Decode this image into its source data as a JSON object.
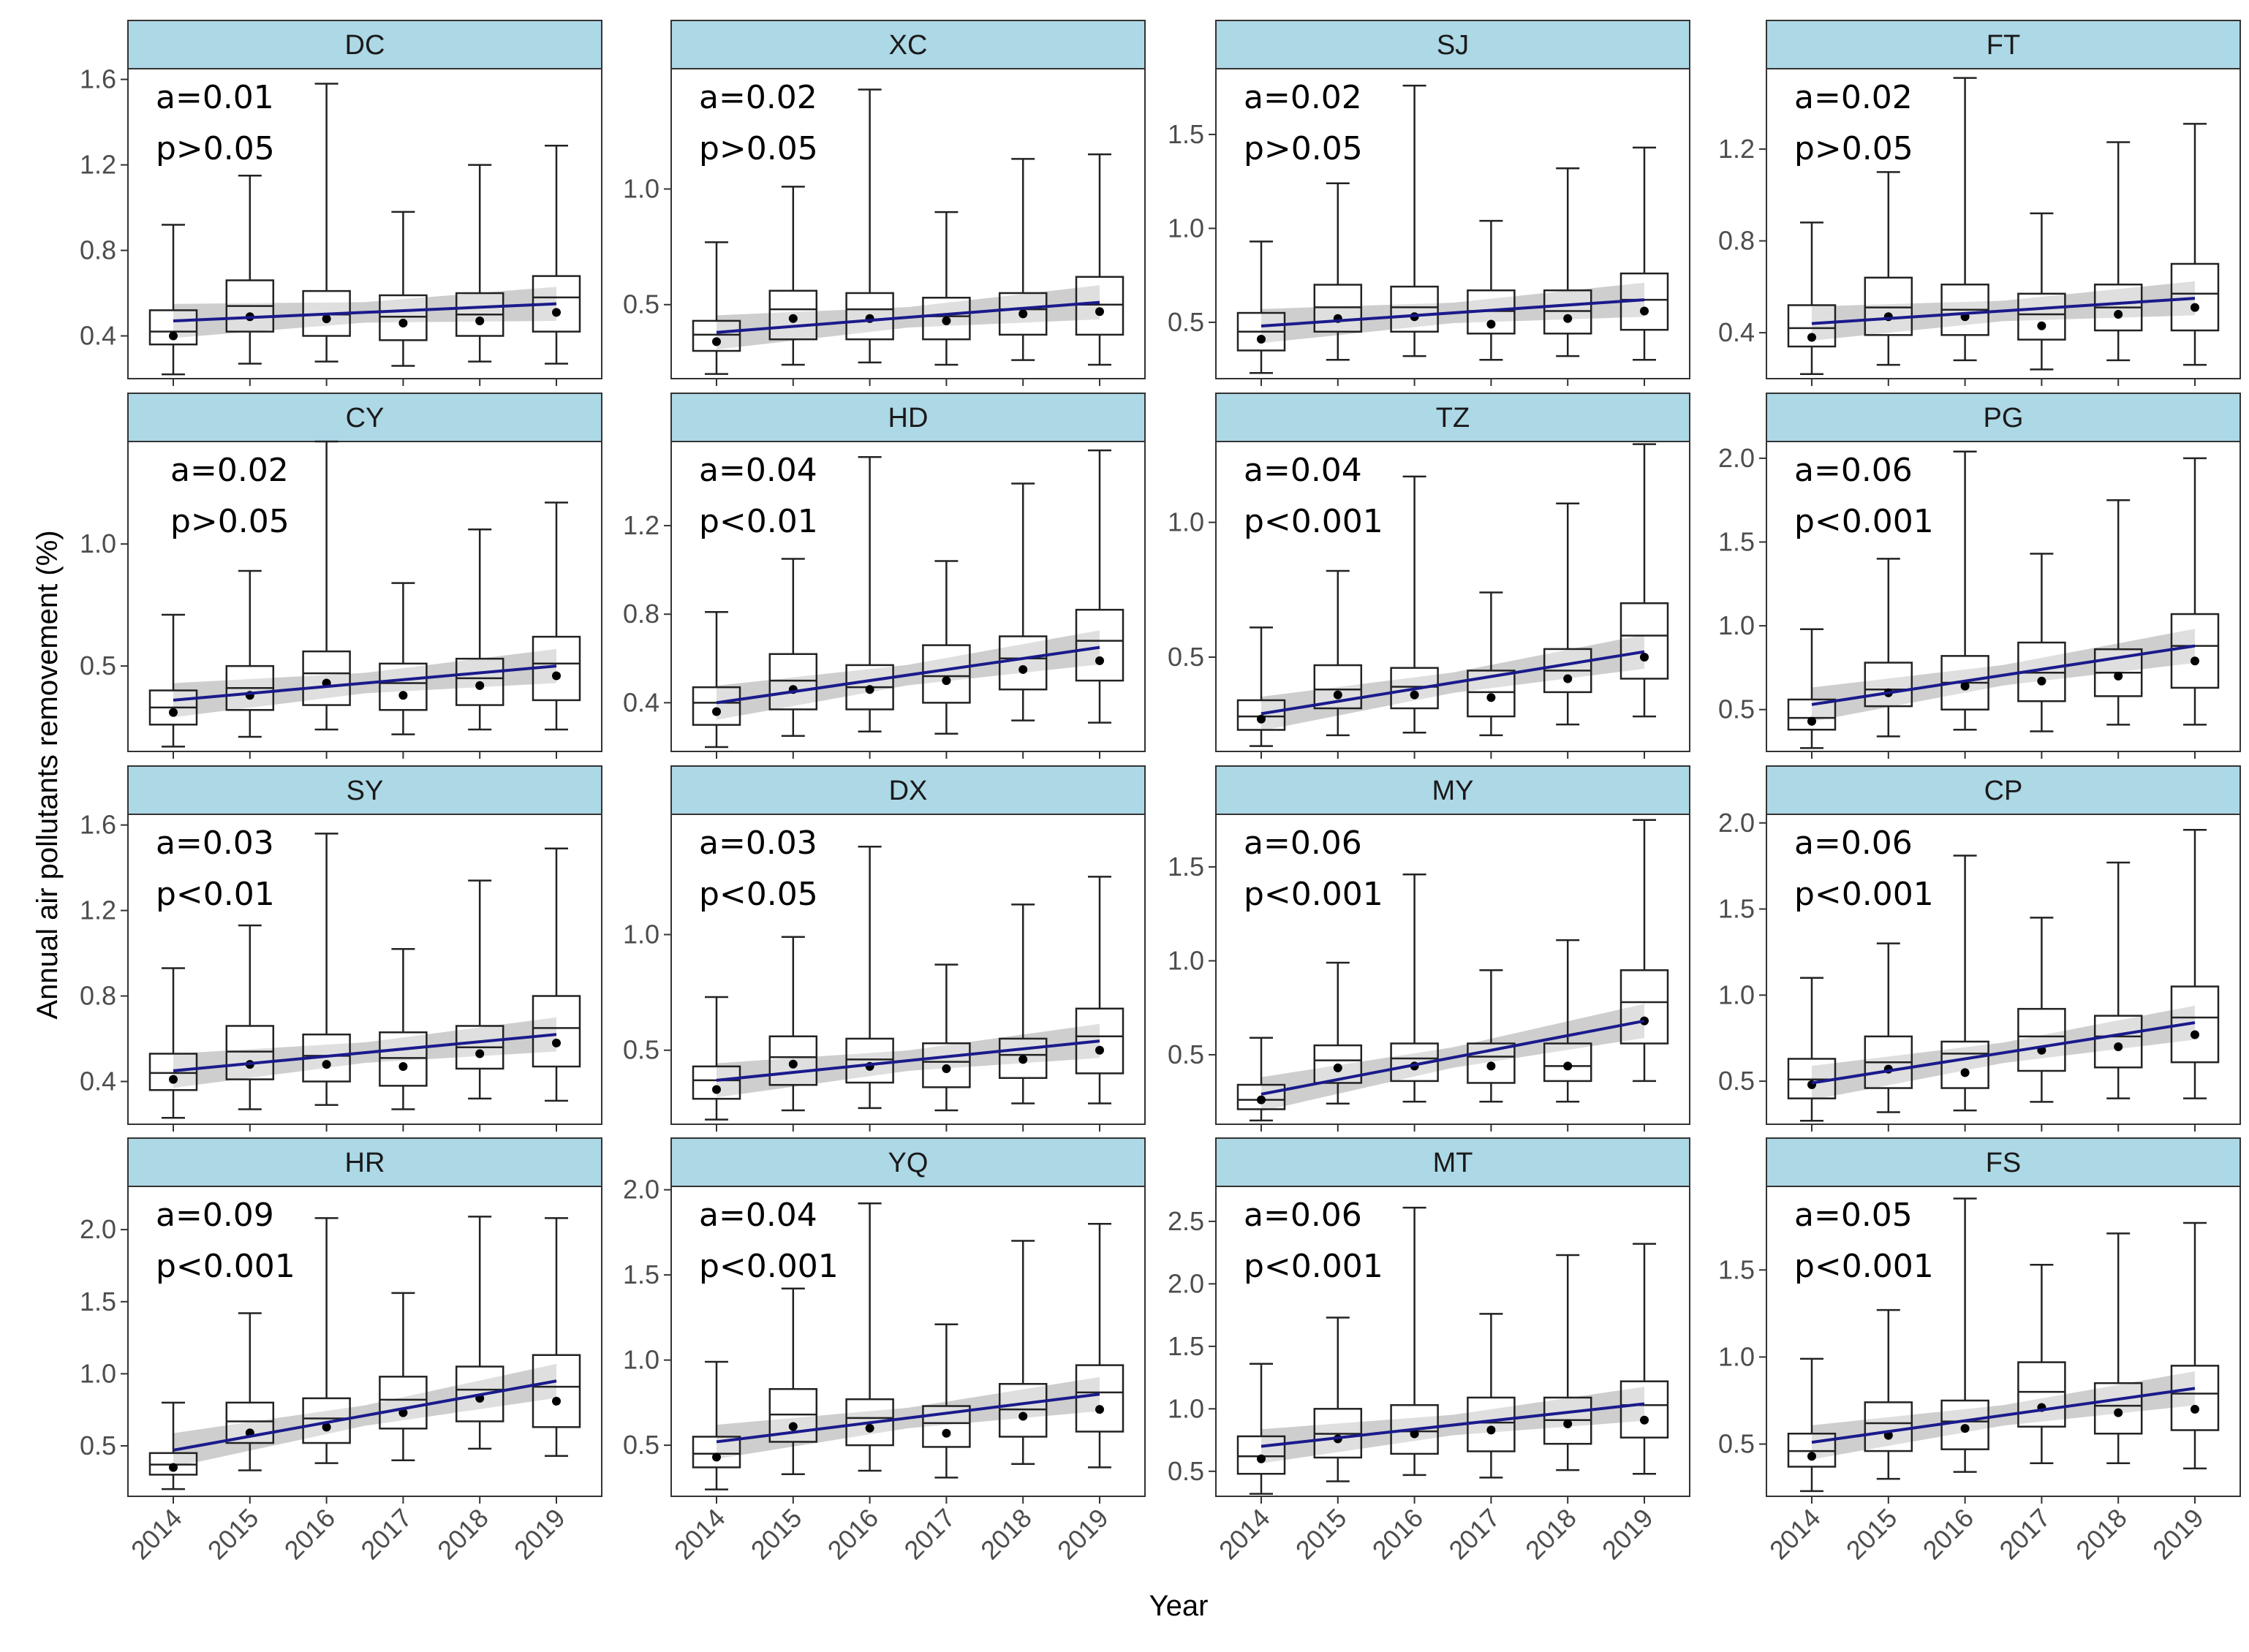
{
  "colors": {
    "strip_fill": "#add8e6",
    "panel_border": "#333333",
    "box_stroke": "#222222",
    "trend_line": "#1a1a8c",
    "ci_band": "#bdbdbd",
    "mean_point": "#000000"
  },
  "chart_data": {
    "type": "boxplot",
    "xlabel": "Year",
    "ylabel": "Annual air pollutants removement (%)",
    "years": [
      "2014",
      "2015",
      "2016",
      "2017",
      "2018",
      "2019"
    ],
    "panels": [
      {
        "name": "DC",
        "a": "a=0.01",
        "p": "p>0.05",
        "ylim": [
          0.2,
          1.65
        ],
        "ticks": [
          0.4,
          0.8,
          1.2,
          1.6
        ],
        "tick_labels": [
          "0.4",
          "0.8",
          "1.2",
          "1.6"
        ],
        "fit": [
          0.47,
          0.55
        ],
        "boxes": [
          [
            0.22,
            0.36,
            0.42,
            0.52,
            0.92,
            0.4
          ],
          [
            0.27,
            0.42,
            0.54,
            0.66,
            1.15,
            0.49
          ],
          [
            0.28,
            0.4,
            0.5,
            0.61,
            1.58,
            0.48
          ],
          [
            0.26,
            0.38,
            0.49,
            0.59,
            0.98,
            0.46
          ],
          [
            0.28,
            0.4,
            0.5,
            0.6,
            1.2,
            0.47
          ],
          [
            0.27,
            0.42,
            0.58,
            0.68,
            1.29,
            0.51
          ]
        ]
      },
      {
        "name": "XC",
        "a": "a=0.02",
        "p": "p>0.05",
        "ylim": [
          0.18,
          1.52
        ],
        "ticks": [
          0.5,
          1.0
        ],
        "tick_labels": [
          "0.5",
          "1.0"
        ],
        "fit": [
          0.38,
          0.51
        ],
        "boxes": [
          [
            0.2,
            0.3,
            0.37,
            0.43,
            0.77,
            0.34
          ],
          [
            0.24,
            0.35,
            0.48,
            0.56,
            1.01,
            0.44
          ],
          [
            0.25,
            0.35,
            0.48,
            0.55,
            1.43,
            0.44
          ],
          [
            0.24,
            0.35,
            0.45,
            0.53,
            0.9,
            0.43
          ],
          [
            0.26,
            0.37,
            0.48,
            0.55,
            1.13,
            0.46
          ],
          [
            0.24,
            0.37,
            0.5,
            0.62,
            1.15,
            0.47
          ]
        ]
      },
      {
        "name": "SJ",
        "a": "a=0.02",
        "p": "p>0.05",
        "ylim": [
          0.2,
          1.85
        ],
        "ticks": [
          0.5,
          1.0,
          1.5
        ],
        "tick_labels": [
          "0.5",
          "1.0",
          "1.5"
        ],
        "fit": [
          0.48,
          0.62
        ],
        "boxes": [
          [
            0.23,
            0.35,
            0.45,
            0.55,
            0.93,
            0.41
          ],
          [
            0.3,
            0.45,
            0.58,
            0.7,
            1.24,
            0.52
          ],
          [
            0.32,
            0.45,
            0.58,
            0.69,
            1.76,
            0.53
          ],
          [
            0.3,
            0.44,
            0.56,
            0.67,
            1.04,
            0.49
          ],
          [
            0.32,
            0.44,
            0.56,
            0.67,
            1.32,
            0.52
          ],
          [
            0.3,
            0.46,
            0.62,
            0.76,
            1.43,
            0.56
          ]
        ]
      },
      {
        "name": "FT",
        "a": "a=0.02",
        "p": "p>0.05",
        "ylim": [
          0.2,
          1.55
        ],
        "ticks": [
          0.4,
          0.8,
          1.2
        ],
        "tick_labels": [
          "0.4",
          "0.8",
          "1.2"
        ],
        "fit": [
          0.44,
          0.55
        ],
        "boxes": [
          [
            0.22,
            0.34,
            0.42,
            0.52,
            0.88,
            0.38
          ],
          [
            0.26,
            0.39,
            0.51,
            0.64,
            1.1,
            0.47
          ],
          [
            0.28,
            0.39,
            0.5,
            0.61,
            1.51,
            0.47
          ],
          [
            0.24,
            0.37,
            0.48,
            0.57,
            0.92,
            0.43
          ],
          [
            0.28,
            0.41,
            0.51,
            0.61,
            1.23,
            0.48
          ],
          [
            0.26,
            0.41,
            0.57,
            0.7,
            1.31,
            0.51
          ]
        ]
      },
      {
        "name": "CY",
        "a": "a=0.02",
        "p": "p>0.05",
        "ylim": [
          0.15,
          1.42
        ],
        "ticks": [
          0.5,
          1.0
        ],
        "tick_labels": [
          "0.5",
          "1.0"
        ],
        "fit": [
          0.36,
          0.5
        ],
        "boxes": [
          [
            0.17,
            0.26,
            0.33,
            0.4,
            0.71,
            0.31
          ],
          [
            0.21,
            0.32,
            0.41,
            0.5,
            0.89,
            0.38
          ],
          [
            0.24,
            0.34,
            0.47,
            0.56,
            1.42,
            0.43
          ],
          [
            0.22,
            0.32,
            0.43,
            0.51,
            0.84,
            0.38
          ],
          [
            0.24,
            0.34,
            0.45,
            0.53,
            1.06,
            0.42
          ],
          [
            0.24,
            0.36,
            0.51,
            0.62,
            1.17,
            0.46
          ]
        ]
      },
      {
        "name": "HD",
        "a": "a=0.04",
        "p": "p<0.01",
        "ylim": [
          0.18,
          1.58
        ],
        "ticks": [
          0.4,
          0.8,
          1.2
        ],
        "tick_labels": [
          "0.4",
          "0.8",
          "1.2"
        ],
        "fit": [
          0.4,
          0.65
        ],
        "boxes": [
          [
            0.2,
            0.3,
            0.4,
            0.47,
            0.81,
            0.36
          ],
          [
            0.25,
            0.37,
            0.5,
            0.62,
            1.05,
            0.46
          ],
          [
            0.27,
            0.37,
            0.47,
            0.57,
            1.51,
            0.46
          ],
          [
            0.26,
            0.4,
            0.52,
            0.66,
            1.04,
            0.5
          ],
          [
            0.32,
            0.46,
            0.6,
            0.7,
            1.39,
            0.55
          ],
          [
            0.31,
            0.5,
            0.68,
            0.82,
            1.54,
            0.59
          ]
        ]
      },
      {
        "name": "TZ",
        "a": "a=0.04",
        "p": "p<0.001",
        "ylim": [
          0.15,
          1.3
        ],
        "ticks": [
          0.5,
          1.0
        ],
        "tick_labels": [
          "0.5",
          "1.0"
        ],
        "fit": [
          0.29,
          0.52
        ],
        "boxes": [
          [
            0.17,
            0.23,
            0.28,
            0.34,
            0.61,
            0.27
          ],
          [
            0.21,
            0.31,
            0.38,
            0.47,
            0.82,
            0.36
          ],
          [
            0.22,
            0.31,
            0.39,
            0.46,
            1.17,
            0.36
          ],
          [
            0.21,
            0.28,
            0.37,
            0.45,
            0.74,
            0.35
          ],
          [
            0.25,
            0.37,
            0.45,
            0.53,
            1.07,
            0.42
          ],
          [
            0.28,
            0.42,
            0.58,
            0.7,
            1.29,
            0.5
          ]
        ]
      },
      {
        "name": "PG",
        "a": "a=0.06",
        "p": "p<0.001",
        "ylim": [
          0.25,
          2.1
        ],
        "ticks": [
          0.5,
          1.0,
          1.5,
          2.0
        ],
        "tick_labels": [
          "0.5",
          "1.0",
          "1.5",
          "2.0"
        ],
        "fit": [
          0.53,
          0.88
        ],
        "boxes": [
          [
            0.27,
            0.38,
            0.45,
            0.56,
            0.98,
            0.43
          ],
          [
            0.34,
            0.52,
            0.62,
            0.78,
            1.4,
            0.6
          ],
          [
            0.38,
            0.5,
            0.66,
            0.82,
            2.04,
            0.64
          ],
          [
            0.37,
            0.55,
            0.72,
            0.9,
            1.43,
            0.67
          ],
          [
            0.41,
            0.58,
            0.72,
            0.86,
            1.75,
            0.7
          ],
          [
            0.41,
            0.63,
            0.88,
            1.07,
            2.0,
            0.79
          ]
        ]
      },
      {
        "name": "SY",
        "a": "a=0.03",
        "p": "p<0.01",
        "ylim": [
          0.2,
          1.65
        ],
        "ticks": [
          0.4,
          0.8,
          1.2,
          1.6
        ],
        "tick_labels": [
          "0.4",
          "0.8",
          "1.2",
          "1.6"
        ],
        "fit": [
          0.45,
          0.62
        ],
        "boxes": [
          [
            0.23,
            0.36,
            0.44,
            0.53,
            0.93,
            0.41
          ],
          [
            0.27,
            0.41,
            0.54,
            0.66,
            1.13,
            0.48
          ],
          [
            0.29,
            0.4,
            0.52,
            0.62,
            1.56,
            0.48
          ],
          [
            0.27,
            0.38,
            0.51,
            0.63,
            1.02,
            0.47
          ],
          [
            0.32,
            0.46,
            0.56,
            0.66,
            1.34,
            0.53
          ],
          [
            0.31,
            0.47,
            0.65,
            0.8,
            1.49,
            0.58
          ]
        ]
      },
      {
        "name": "DX",
        "a": "a=0.03",
        "p": "p<0.05",
        "ylim": [
          0.18,
          1.52
        ],
        "ticks": [
          0.5,
          1.0
        ],
        "tick_labels": [
          "0.5",
          "1.0"
        ],
        "fit": [
          0.37,
          0.54
        ],
        "boxes": [
          [
            0.2,
            0.29,
            0.37,
            0.43,
            0.73,
            0.33
          ],
          [
            0.24,
            0.35,
            0.47,
            0.56,
            0.99,
            0.44
          ],
          [
            0.25,
            0.36,
            0.46,
            0.55,
            1.38,
            0.43
          ],
          [
            0.24,
            0.34,
            0.45,
            0.53,
            0.87,
            0.42
          ],
          [
            0.27,
            0.38,
            0.48,
            0.55,
            1.13,
            0.46
          ],
          [
            0.27,
            0.4,
            0.56,
            0.68,
            1.25,
            0.5
          ]
        ]
      },
      {
        "name": "MY",
        "a": "a=0.06",
        "p": "p<0.001",
        "ylim": [
          0.13,
          1.78
        ],
        "ticks": [
          0.5,
          1.0,
          1.5
        ],
        "tick_labels": [
          "0.5",
          "1.0",
          "1.5"
        ],
        "fit": [
          0.29,
          0.68
        ],
        "boxes": [
          [
            0.15,
            0.21,
            0.26,
            0.34,
            0.59,
            0.26
          ],
          [
            0.24,
            0.35,
            0.47,
            0.55,
            0.99,
            0.43
          ],
          [
            0.25,
            0.36,
            0.48,
            0.56,
            1.46,
            0.44
          ],
          [
            0.25,
            0.35,
            0.49,
            0.56,
            0.95,
            0.44
          ],
          [
            0.25,
            0.36,
            0.44,
            0.56,
            1.11,
            0.44
          ],
          [
            0.36,
            0.56,
            0.78,
            0.95,
            1.75,
            0.68
          ]
        ]
      },
      {
        "name": "CP",
        "a": "a=0.06",
        "p": "p<0.001",
        "ylim": [
          0.25,
          2.05
        ],
        "ticks": [
          0.5,
          1.0,
          1.5,
          2.0
        ],
        "tick_labels": [
          "0.5",
          "1.0",
          "1.5",
          "2.0"
        ],
        "fit": [
          0.49,
          0.84
        ],
        "boxes": [
          [
            0.27,
            0.4,
            0.51,
            0.63,
            1.1,
            0.48
          ],
          [
            0.32,
            0.46,
            0.61,
            0.76,
            1.3,
            0.57
          ],
          [
            0.33,
            0.46,
            0.66,
            0.73,
            1.81,
            0.55
          ],
          [
            0.38,
            0.56,
            0.76,
            0.92,
            1.45,
            0.68
          ],
          [
            0.4,
            0.58,
            0.76,
            0.88,
            1.77,
            0.7
          ],
          [
            0.4,
            0.61,
            0.87,
            1.05,
            1.96,
            0.77
          ]
        ]
      },
      {
        "name": "HR",
        "a": "a=0.09",
        "p": "p<0.001",
        "ylim": [
          0.15,
          2.3
        ],
        "ticks": [
          0.5,
          1.0,
          1.5,
          2.0
        ],
        "tick_labels": [
          "0.5",
          "1.0",
          "1.5",
          "2.0"
        ],
        "fit": [
          0.47,
          0.95
        ],
        "boxes": [
          [
            0.2,
            0.3,
            0.37,
            0.45,
            0.8,
            0.35
          ],
          [
            0.33,
            0.52,
            0.67,
            0.8,
            1.42,
            0.59
          ],
          [
            0.38,
            0.52,
            0.69,
            0.83,
            2.08,
            0.63
          ],
          [
            0.4,
            0.62,
            0.82,
            0.98,
            1.56,
            0.73
          ],
          [
            0.48,
            0.67,
            0.89,
            1.05,
            2.09,
            0.83
          ],
          [
            0.43,
            0.63,
            0.91,
            1.13,
            2.08,
            0.81
          ]
        ]
      },
      {
        "name": "YQ",
        "a": "a=0.04",
        "p": "p<0.001",
        "ylim": [
          0.2,
          2.02
        ],
        "ticks": [
          0.5,
          1.0,
          1.5,
          2.0
        ],
        "tick_labels": [
          "0.5",
          "1.0",
          "1.5",
          "2.0"
        ],
        "fit": [
          0.52,
          0.8
        ],
        "boxes": [
          [
            0.24,
            0.37,
            0.45,
            0.55,
            0.99,
            0.43
          ],
          [
            0.33,
            0.52,
            0.68,
            0.83,
            1.42,
            0.61
          ],
          [
            0.35,
            0.5,
            0.66,
            0.77,
            1.92,
            0.6
          ],
          [
            0.31,
            0.49,
            0.63,
            0.73,
            1.21,
            0.57
          ],
          [
            0.39,
            0.55,
            0.71,
            0.86,
            1.7,
            0.67
          ],
          [
            0.37,
            0.58,
            0.81,
            0.97,
            1.8,
            0.71
          ]
        ]
      },
      {
        "name": "MT",
        "a": "a=0.06",
        "p": "p<0.001",
        "ylim": [
          0.3,
          2.78
        ],
        "ticks": [
          0.5,
          1.0,
          1.5,
          2.0,
          2.5
        ],
        "tick_labels": [
          "0.5",
          "1.0",
          "1.5",
          "2.0",
          "2.5"
        ],
        "fit": [
          0.7,
          1.04
        ],
        "boxes": [
          [
            0.32,
            0.48,
            0.62,
            0.78,
            1.36,
            0.6
          ],
          [
            0.42,
            0.61,
            0.8,
            1.0,
            1.73,
            0.76
          ],
          [
            0.47,
            0.64,
            0.82,
            1.03,
            2.61,
            0.8
          ],
          [
            0.45,
            0.66,
            0.89,
            1.09,
            1.76,
            0.83
          ],
          [
            0.51,
            0.72,
            0.91,
            1.09,
            2.23,
            0.88
          ],
          [
            0.48,
            0.77,
            1.03,
            1.22,
            2.32,
            0.91
          ]
        ]
      },
      {
        "name": "FS",
        "a": "a=0.05",
        "p": "p<0.001",
        "ylim": [
          0.2,
          1.98
        ],
        "ticks": [
          0.5,
          1.0,
          1.5
        ],
        "tick_labels": [
          "0.5",
          "1.0",
          "1.5"
        ],
        "fit": [
          0.51,
          0.82
        ],
        "boxes": [
          [
            0.23,
            0.37,
            0.46,
            0.56,
            0.99,
            0.43
          ],
          [
            0.3,
            0.46,
            0.62,
            0.74,
            1.27,
            0.55
          ],
          [
            0.34,
            0.47,
            0.63,
            0.75,
            1.91,
            0.59
          ],
          [
            0.39,
            0.6,
            0.8,
            0.97,
            1.53,
            0.71
          ],
          [
            0.39,
            0.56,
            0.72,
            0.85,
            1.71,
            0.68
          ],
          [
            0.36,
            0.58,
            0.79,
            0.95,
            1.77,
            0.7
          ]
        ]
      }
    ]
  }
}
